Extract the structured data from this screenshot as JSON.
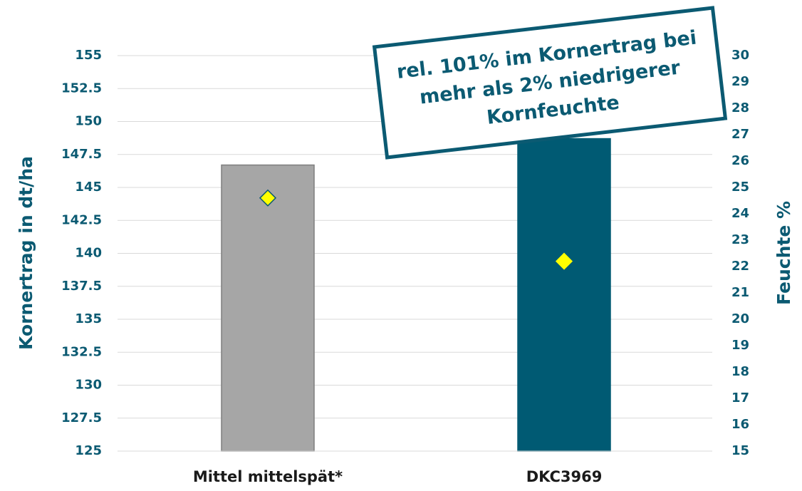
{
  "chart_data": {
    "type": "bar",
    "categories": [
      "Mittel mittelspät*",
      "DKC3969"
    ],
    "series": [
      {
        "type": "bar",
        "colors": [
          "#a6a6a6",
          "#005a73"
        ],
        "values": [
          146.7,
          148.7
        ]
      },
      {
        "type": "scatter",
        "axis": "y2",
        "color": "#ffff00",
        "values": [
          24.6,
          22.2
        ]
      }
    ],
    "ylabel": "Kornertrag in dt/ha",
    "y2label": "Feuchte %",
    "ylim": [
      125,
      155
    ],
    "yticks": [
      125,
      127.5,
      130,
      132.5,
      135,
      137.5,
      140,
      142.5,
      145,
      147.5,
      150,
      152.5,
      155
    ],
    "y2lim": [
      15,
      30
    ],
    "y2ticks": [
      15,
      16,
      17,
      18,
      19,
      20,
      21,
      22,
      23,
      24,
      25,
      26,
      27,
      28,
      29,
      30
    ],
    "grid": true,
    "annotation": [
      "rel. 101% im Kornertrag bei",
      "mehr als 2% niedrigerer",
      "Kornfeuchte"
    ]
  }
}
